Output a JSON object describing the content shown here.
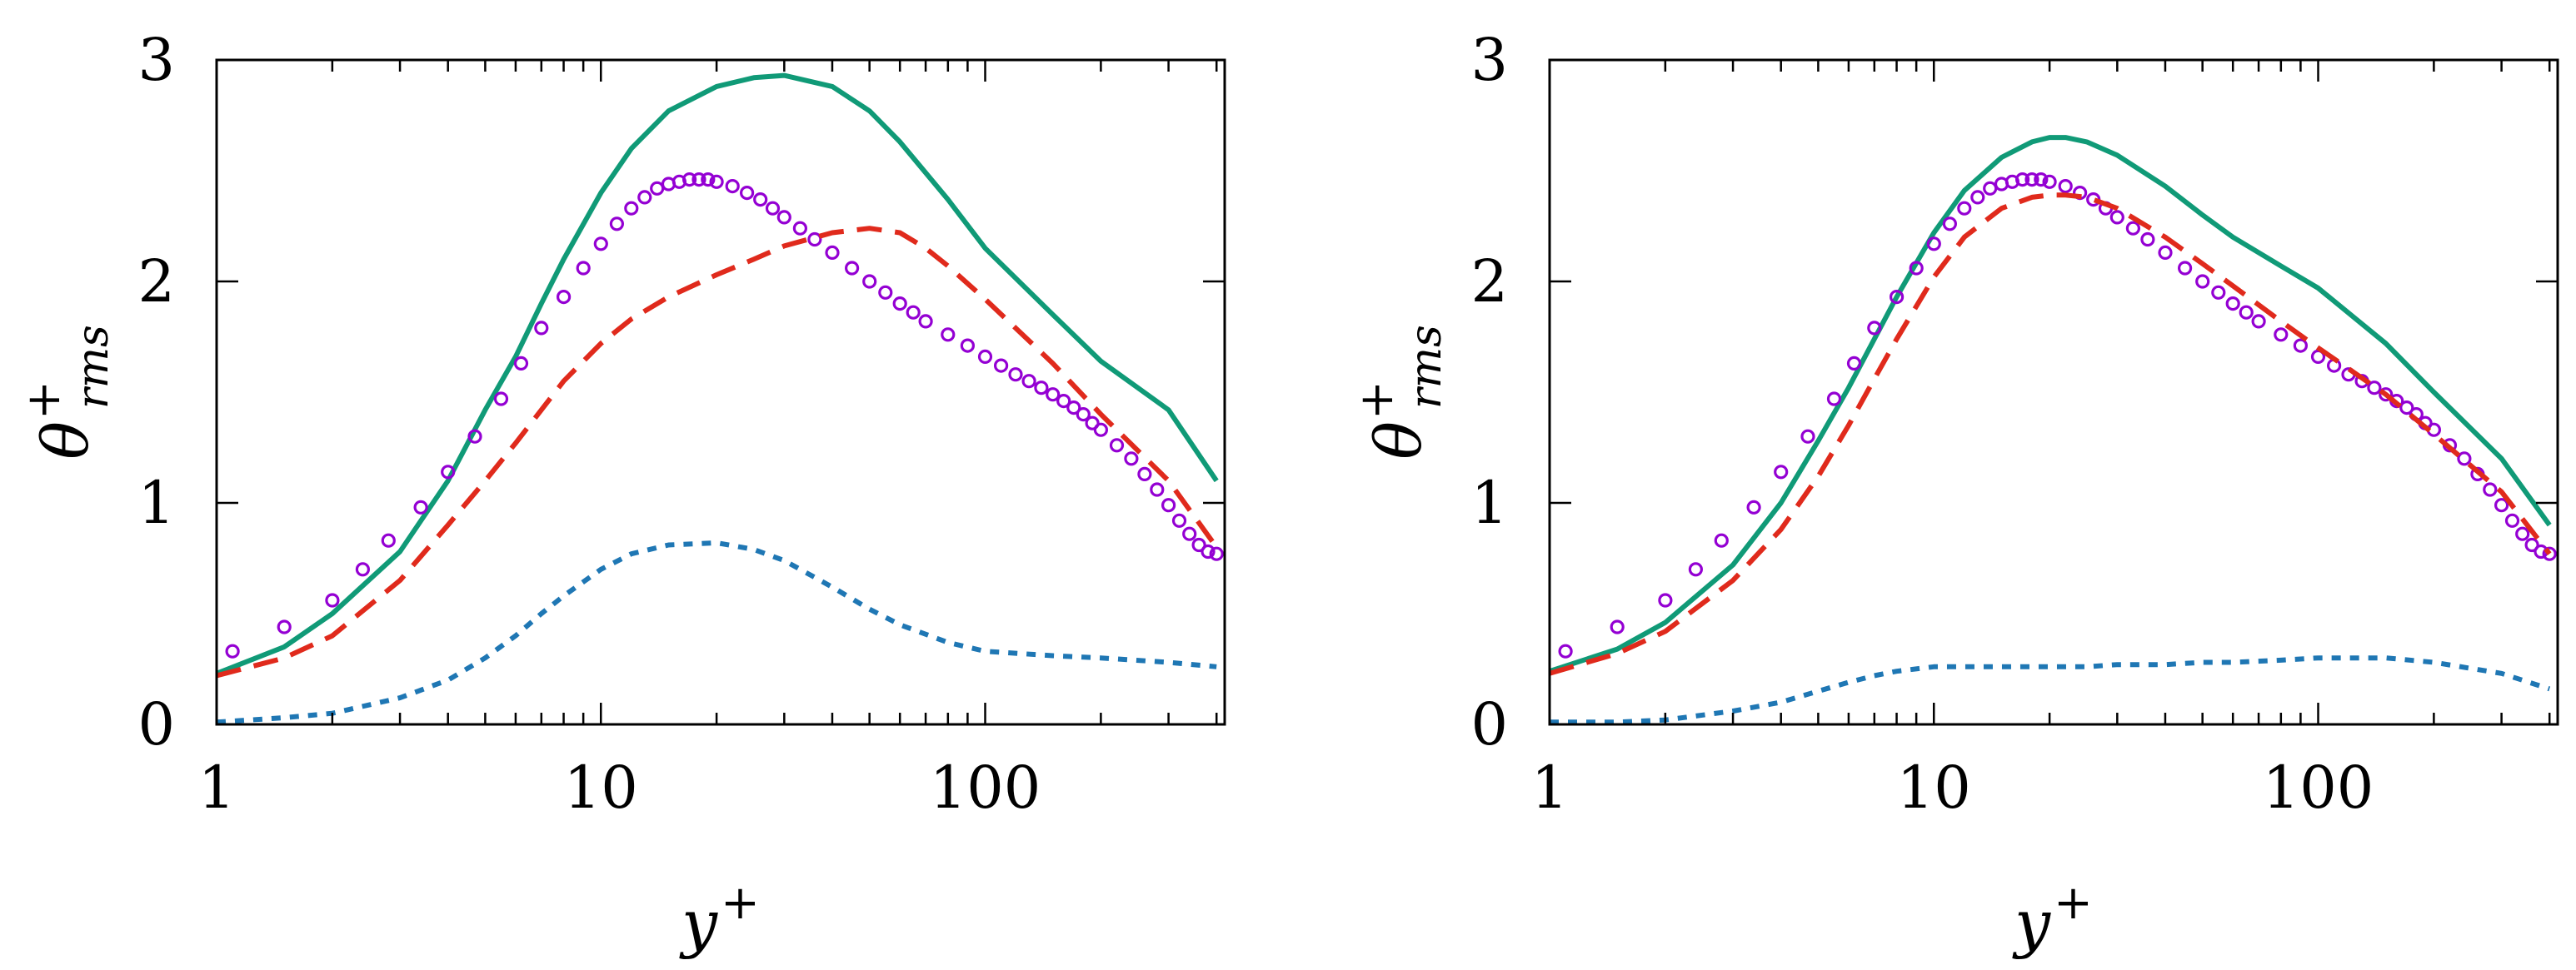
{
  "chart_data": [
    {
      "type": "line",
      "panel": "left",
      "xscale": "log",
      "xlim": [
        1,
        420
      ],
      "ylim": [
        0,
        3
      ],
      "xlabel": "y+",
      "xlabel_base": "y",
      "xlabel_sup": "+",
      "ylabel": "θ+rms",
      "ylabel_base": "θ",
      "ylabel_sup": "+",
      "ylabel_sub": "rms",
      "x_ticks": [
        1,
        10,
        100
      ],
      "x_tick_labels": [
        "1",
        "10",
        "100"
      ],
      "y_ticks": [
        0,
        1,
        2,
        3
      ],
      "y_tick_labels": [
        "0",
        "1",
        "2",
        "3"
      ],
      "series": [
        {
          "name": "solid",
          "style": "solid",
          "color": "#109a77",
          "x": [
            1,
            1.5,
            2,
            3,
            4,
            5,
            6,
            7,
            8,
            10,
            12,
            15,
            20,
            25,
            30,
            40,
            50,
            60,
            80,
            100,
            150,
            200,
            300,
            400
          ],
          "y": [
            0.23,
            0.35,
            0.5,
            0.78,
            1.1,
            1.42,
            1.66,
            1.9,
            2.1,
            2.4,
            2.6,
            2.77,
            2.88,
            2.92,
            2.93,
            2.88,
            2.77,
            2.63,
            2.37,
            2.15,
            1.85,
            1.64,
            1.42,
            1.1
          ]
        },
        {
          "name": "circles",
          "style": "markers",
          "color": "#9400d3",
          "x": [
            1.1,
            1.5,
            2,
            2.4,
            2.8,
            3.4,
            4,
            4.7,
            5.5,
            6.2,
            7,
            8,
            9,
            10,
            11,
            12,
            13,
            14,
            15,
            16,
            17,
            18,
            19,
            20,
            22,
            24,
            26,
            28,
            30,
            33,
            36,
            40,
            45,
            50,
            55,
            60,
            65,
            70,
            80,
            90,
            100,
            110,
            120,
            130,
            140,
            150,
            160,
            170,
            180,
            190,
            200,
            220,
            240,
            260,
            280,
            300,
            320,
            340,
            360,
            380,
            400
          ],
          "y": [
            0.33,
            0.44,
            0.56,
            0.7,
            0.83,
            0.98,
            1.14,
            1.3,
            1.47,
            1.63,
            1.79,
            1.93,
            2.06,
            2.17,
            2.26,
            2.33,
            2.38,
            2.42,
            2.44,
            2.45,
            2.46,
            2.46,
            2.46,
            2.45,
            2.43,
            2.4,
            2.37,
            2.33,
            2.29,
            2.24,
            2.19,
            2.13,
            2.06,
            2.0,
            1.95,
            1.9,
            1.86,
            1.82,
            1.76,
            1.71,
            1.66,
            1.62,
            1.58,
            1.55,
            1.52,
            1.49,
            1.46,
            1.43,
            1.4,
            1.36,
            1.33,
            1.26,
            1.2,
            1.13,
            1.06,
            0.99,
            0.92,
            0.86,
            0.81,
            0.78,
            0.77
          ]
        },
        {
          "name": "dashed",
          "style": "dashed",
          "color": "#e02a1c",
          "x": [
            1,
            1.5,
            2,
            3,
            4,
            5,
            6,
            7,
            8,
            10,
            12,
            15,
            20,
            25,
            30,
            40,
            50,
            60,
            70,
            80,
            100,
            150,
            200,
            300,
            400
          ],
          "y": [
            0.22,
            0.3,
            0.4,
            0.65,
            0.9,
            1.1,
            1.27,
            1.42,
            1.55,
            1.72,
            1.83,
            1.93,
            2.03,
            2.1,
            2.16,
            2.22,
            2.24,
            2.22,
            2.15,
            2.07,
            1.92,
            1.63,
            1.4,
            1.1,
            0.8
          ]
        },
        {
          "name": "dotted",
          "style": "dotted",
          "color": "#1f77b4",
          "x": [
            1,
            1.5,
            2,
            3,
            4,
            5,
            6,
            7,
            8,
            10,
            12,
            15,
            20,
            25,
            30,
            40,
            50,
            60,
            80,
            100,
            150,
            200,
            300,
            400
          ],
          "y": [
            0.01,
            0.03,
            0.05,
            0.12,
            0.2,
            0.3,
            0.4,
            0.5,
            0.58,
            0.7,
            0.77,
            0.81,
            0.82,
            0.79,
            0.74,
            0.62,
            0.52,
            0.45,
            0.37,
            0.33,
            0.31,
            0.3,
            0.28,
            0.26
          ]
        }
      ]
    },
    {
      "type": "line",
      "panel": "right",
      "xscale": "log",
      "xlim": [
        1,
        420
      ],
      "ylim": [
        0,
        3
      ],
      "xlabel": "y+",
      "xlabel_base": "y",
      "xlabel_sup": "+",
      "ylabel": "θ+rms",
      "ylabel_base": "θ",
      "ylabel_sup": "+",
      "ylabel_sub": "rms",
      "x_ticks": [
        1,
        10,
        100
      ],
      "x_tick_labels": [
        "1",
        "10",
        "100"
      ],
      "y_ticks": [
        0,
        1,
        2,
        3
      ],
      "y_tick_labels": [
        "0",
        "1",
        "2",
        "3"
      ],
      "series": [
        {
          "name": "solid",
          "style": "solid",
          "color": "#109a77",
          "x": [
            1,
            1.5,
            2,
            3,
            4,
            5,
            6,
            7,
            8,
            10,
            12,
            15,
            18,
            20,
            22,
            25,
            30,
            40,
            50,
            60,
            80,
            100,
            150,
            200,
            300,
            400
          ],
          "y": [
            0.24,
            0.34,
            0.46,
            0.72,
            1.0,
            1.28,
            1.52,
            1.74,
            1.93,
            2.22,
            2.41,
            2.56,
            2.63,
            2.65,
            2.65,
            2.63,
            2.57,
            2.43,
            2.3,
            2.2,
            2.07,
            1.97,
            1.72,
            1.5,
            1.2,
            0.9
          ]
        },
        {
          "name": "circles",
          "style": "markers",
          "color": "#9400d3",
          "x": [
            1.1,
            1.5,
            2,
            2.4,
            2.8,
            3.4,
            4,
            4.7,
            5.5,
            6.2,
            7,
            8,
            9,
            10,
            11,
            12,
            13,
            14,
            15,
            16,
            17,
            18,
            19,
            20,
            22,
            24,
            26,
            28,
            30,
            33,
            36,
            40,
            45,
            50,
            55,
            60,
            65,
            70,
            80,
            90,
            100,
            110,
            120,
            130,
            140,
            150,
            160,
            170,
            180,
            190,
            200,
            220,
            240,
            260,
            280,
            300,
            320,
            340,
            360,
            380,
            400
          ],
          "y": [
            0.33,
            0.44,
            0.56,
            0.7,
            0.83,
            0.98,
            1.14,
            1.3,
            1.47,
            1.63,
            1.79,
            1.93,
            2.06,
            2.17,
            2.26,
            2.33,
            2.38,
            2.42,
            2.44,
            2.45,
            2.46,
            2.46,
            2.46,
            2.45,
            2.43,
            2.4,
            2.37,
            2.33,
            2.29,
            2.24,
            2.19,
            2.13,
            2.06,
            2.0,
            1.95,
            1.9,
            1.86,
            1.82,
            1.76,
            1.71,
            1.66,
            1.62,
            1.58,
            1.55,
            1.52,
            1.49,
            1.46,
            1.43,
            1.4,
            1.36,
            1.33,
            1.26,
            1.2,
            1.13,
            1.06,
            0.99,
            0.92,
            0.86,
            0.81,
            0.78,
            0.77
          ]
        },
        {
          "name": "dashed",
          "style": "dashed",
          "color": "#e02a1c",
          "x": [
            1,
            1.5,
            2,
            3,
            4,
            5,
            6,
            7,
            8,
            10,
            12,
            15,
            18,
            20,
            22,
            25,
            30,
            40,
            50,
            60,
            80,
            100,
            150,
            200,
            300,
            400
          ],
          "y": [
            0.23,
            0.32,
            0.42,
            0.65,
            0.88,
            1.12,
            1.35,
            1.56,
            1.74,
            2.02,
            2.2,
            2.33,
            2.38,
            2.39,
            2.39,
            2.38,
            2.33,
            2.2,
            2.08,
            1.98,
            1.82,
            1.7,
            1.49,
            1.31,
            1.05,
            0.77
          ]
        },
        {
          "name": "dotted",
          "style": "dotted",
          "color": "#1f77b4",
          "x": [
            1,
            1.5,
            2,
            3,
            4,
            5,
            6,
            7,
            8,
            10,
            12,
            15,
            20,
            25,
            30,
            40,
            50,
            60,
            80,
            100,
            120,
            150,
            200,
            300,
            400
          ],
          "y": [
            0.01,
            0.01,
            0.02,
            0.06,
            0.1,
            0.15,
            0.19,
            0.22,
            0.24,
            0.26,
            0.26,
            0.26,
            0.26,
            0.26,
            0.27,
            0.27,
            0.28,
            0.28,
            0.29,
            0.3,
            0.3,
            0.3,
            0.28,
            0.23,
            0.16
          ]
        }
      ]
    }
  ]
}
